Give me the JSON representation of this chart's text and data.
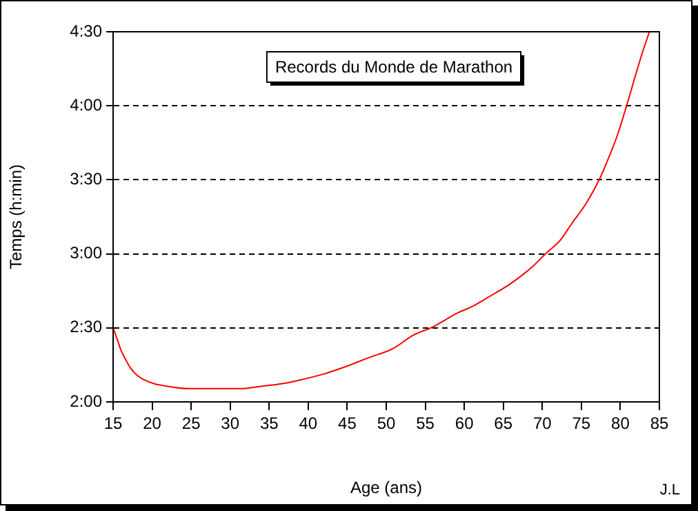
{
  "chart_data": {
    "type": "line",
    "title": "Records du Monde de Marathon",
    "xlabel": "Age (ans)",
    "ylabel": "Temps (h:min)",
    "annotations": [
      "J.L"
    ],
    "x": [
      15,
      15.5,
      16,
      16.6,
      17.2,
      18.1,
      19,
      20.2,
      21.6,
      24.6,
      31.4,
      33.4,
      36.7,
      39,
      42,
      44.9,
      47.9,
      50.8,
      53.5,
      55.8,
      59.1,
      61.1,
      63.8,
      65.8,
      68.8,
      70.5,
      72.3,
      73.8,
      75.5,
      77.3,
      78.8,
      79.7,
      80.8,
      82,
      82.9,
      83.7
    ],
    "series": [
      {
        "color": "#ff0000",
        "values": [
          150,
          145.6,
          141,
          137.2,
          133.9,
          130.7,
          128.9,
          127.4,
          126.5,
          125.4,
          125.4,
          126.1,
          127.4,
          128.9,
          131.3,
          134.4,
          138.1,
          141.5,
          147.1,
          150.1,
          156,
          158.8,
          163.8,
          167.6,
          175,
          180.3,
          185.5,
          192.4,
          199.9,
          210.1,
          221.3,
          228.8,
          240,
          253,
          262.3,
          269.8
        ]
      }
    ],
    "xlim": [
      15,
      85
    ],
    "xticks": [
      15,
      20,
      25,
      30,
      35,
      40,
      45,
      50,
      55,
      60,
      65,
      70,
      75,
      80,
      85
    ],
    "ylim": [
      120,
      270
    ],
    "yticks": [
      {
        "value": 120,
        "label": "2:00"
      },
      {
        "value": 150,
        "label": "2:30"
      },
      {
        "value": 180,
        "label": "3:00"
      },
      {
        "value": 210,
        "label": "3:30"
      },
      {
        "value": 240,
        "label": "4:00"
      },
      {
        "value": 270,
        "label": "4:30"
      }
    ],
    "grid": "y",
    "legend": false,
    "marker": "none",
    "line_style": "solid"
  }
}
